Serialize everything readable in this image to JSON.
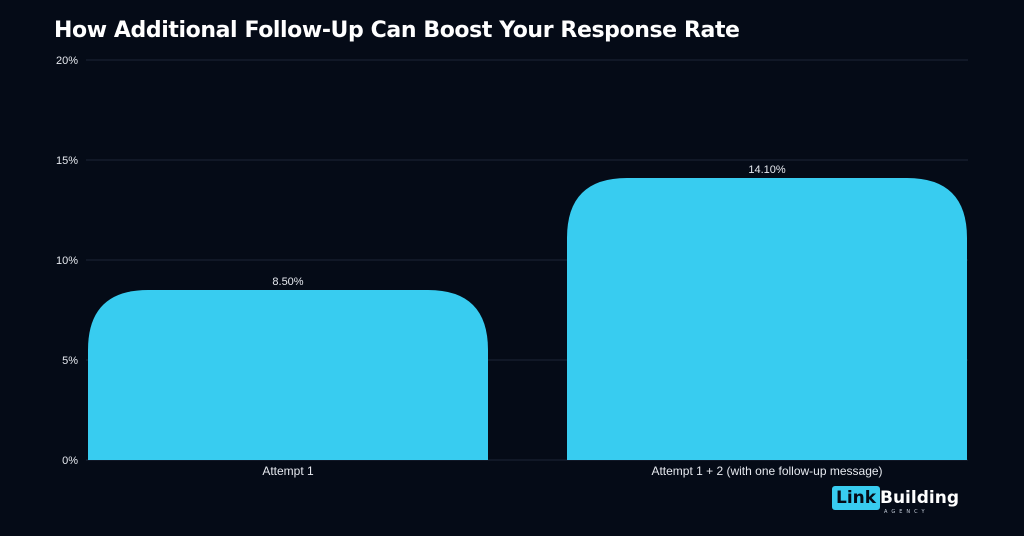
{
  "chart_data": {
    "type": "bar",
    "title": "How Additional Follow-Up Can Boost Your Response Rate",
    "categories": [
      "Attempt 1",
      "Attempt 1 + 2 (with one follow-up message)"
    ],
    "values": [
      8.5,
      14.1
    ],
    "value_labels": [
      "8.50%",
      "14.10%"
    ],
    "y_ticks": [
      0,
      5,
      10,
      15,
      20
    ],
    "y_tick_labels": [
      "0%",
      "5%",
      "10%",
      "15%",
      "20%"
    ],
    "ylim": [
      0,
      20
    ],
    "xlabel": "",
    "ylabel": "",
    "grid": true,
    "bar_color": "#38ccf0",
    "grid_color": "#1d2637",
    "text_color": "#e6e9ef"
  },
  "logo": {
    "highlight": "Link",
    "word": "Building",
    "sub": "AGENCY"
  }
}
